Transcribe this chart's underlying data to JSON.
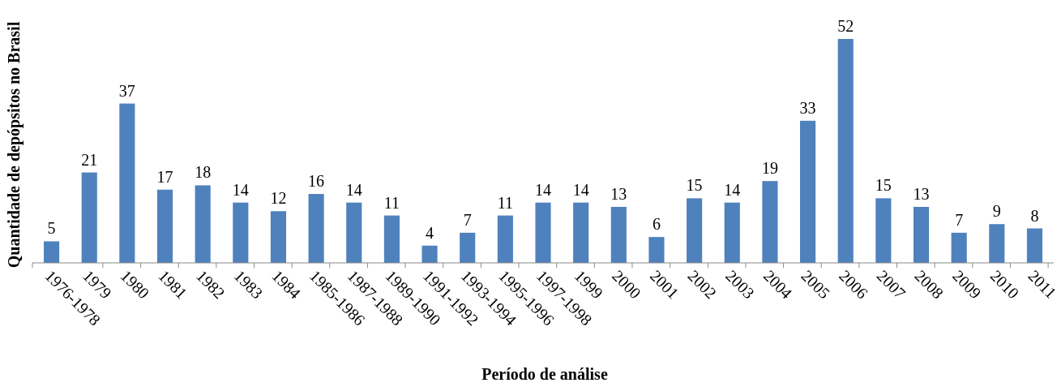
{
  "chart_data": {
    "type": "bar",
    "xlabel": "Período de análise",
    "ylabel": "Quantidade de depópsitos no Brasil",
    "categories": [
      "1976-1978",
      "1979",
      "1980",
      "1981",
      "1982",
      "1983",
      "1984",
      "1985-1986",
      "1987-1988",
      "1989-1990",
      "1991-1992",
      "1993-1994",
      "1995-1996",
      "1997-1998",
      "1999",
      "2000",
      "2001",
      "2002",
      "2003",
      "2004",
      "2005",
      "2006",
      "2007",
      "2008",
      "2009",
      "2010",
      "2011"
    ],
    "values": [
      5,
      21,
      37,
      17,
      18,
      14,
      12,
      16,
      14,
      11,
      4,
      7,
      11,
      14,
      14,
      13,
      6,
      15,
      14,
      19,
      33,
      52,
      15,
      13,
      7,
      9,
      8
    ],
    "color": "#4f81bd",
    "data_labels": true,
    "tick_labels": "x"
  }
}
